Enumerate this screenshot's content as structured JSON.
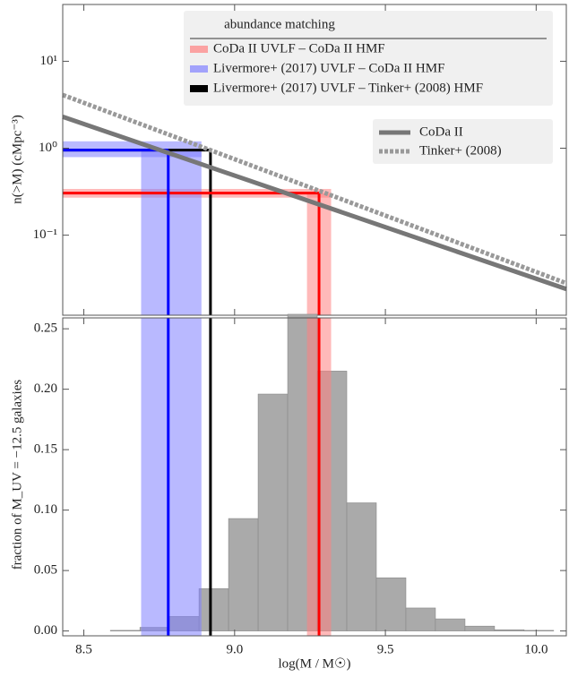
{
  "chart_data": [
    {
      "type": "line",
      "ylabel": "n(>M)  (cMpc⁻³)",
      "log_y": true,
      "xlim": [
        8.43,
        10.1
      ],
      "ylim": [
        0.012,
        45
      ],
      "yticks": [
        {
          "value": 10,
          "label": "10¹"
        },
        {
          "value": 1,
          "label": "10⁰"
        },
        {
          "value": 0.1,
          "label": "10⁻¹"
        }
      ],
      "x": [
        8.43,
        10.1
      ],
      "series": [
        {
          "name": "CoDa II",
          "color": "#777777",
          "dash": false,
          "values": [
            2.3,
            0.024
          ]
        },
        {
          "name": "Tinker+ (2008)",
          "color": "#999999",
          "dash": true,
          "values": [
            4.1,
            0.028
          ]
        }
      ],
      "legend_title": "abundance matching",
      "matches": [
        {
          "name": "CoDa II UVLF – CoDa II HMF",
          "color": "#ff0000",
          "band_color": "#ff8080",
          "mass": 9.28,
          "mass_range": [
            9.24,
            9.32
          ],
          "density": 0.305,
          "density_range": [
            0.27,
            0.34
          ]
        },
        {
          "name": "Livermore+ (2017) UVLF – CoDa II HMF",
          "color": "#0000ff",
          "band_color": "#8080ff",
          "mass": 8.78,
          "mass_range": [
            8.69,
            8.89
          ],
          "density": 0.95,
          "density_range": [
            0.79,
            1.2
          ]
        },
        {
          "name": "Livermore+ (2017) UVLF – Tinker+ (2008) HMF",
          "color": "#000000",
          "mass": 8.92,
          "density": 0.95
        }
      ]
    },
    {
      "type": "histogram",
      "xlabel": "log(M / M☉)",
      "ylabel": "fraction of M_UV = −12.5 galaxies",
      "xlim": [
        8.43,
        10.1
      ],
      "ylim": [
        -0.004,
        0.259
      ],
      "xticks": [
        8.5,
        {
          "value": 9,
          "label": "9.0"
        },
        9.5,
        {
          "value": 10,
          "label": "10.0"
        }
      ],
      "yticks": [
        {
          "value": 0,
          "label": "0.00"
        },
        0.05,
        {
          "value": 0.1,
          "label": "0.10"
        },
        0.15,
        {
          "value": 0.2,
          "label": "0.20"
        },
        0.25
      ],
      "color": "#aaaaaa",
      "bins": [
        8.588,
        8.686,
        8.784,
        8.882,
        8.98,
        9.078,
        9.176,
        9.274,
        9.372,
        9.47,
        9.568,
        9.666,
        9.764,
        9.862,
        9.96,
        10.058
      ],
      "values": [
        0.0005,
        0.003,
        0.012,
        0.035,
        0.093,
        0.196,
        0.262,
        0.215,
        0.106,
        0.044,
        0.019,
        0.01,
        0.004,
        0.001,
        0.0005
      ]
    }
  ]
}
